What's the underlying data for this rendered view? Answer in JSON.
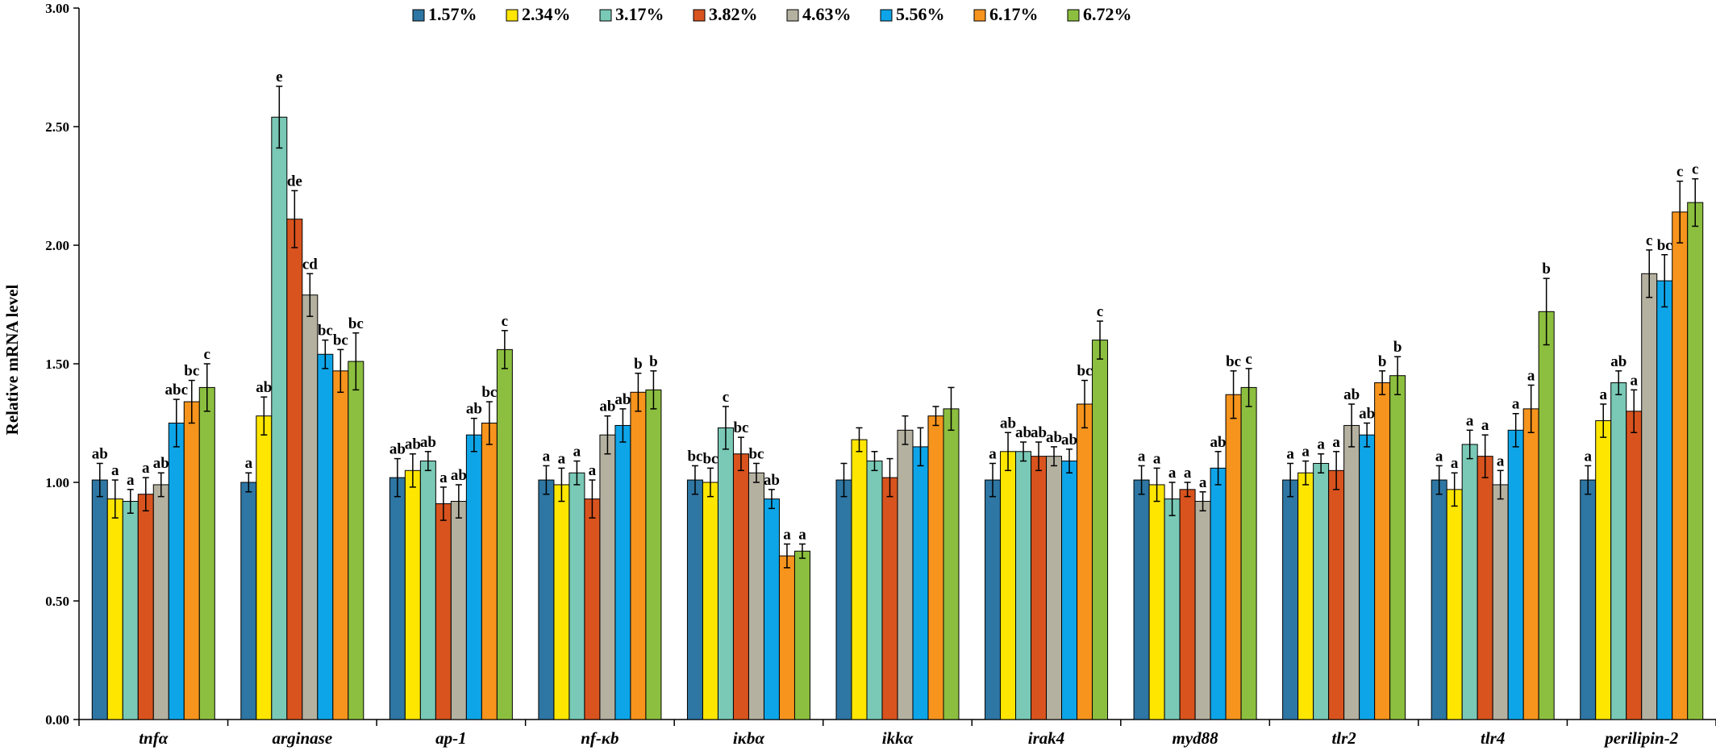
{
  "chart_data": {
    "type": "bar",
    "ylabel": "Relative mRNA level",
    "ylim": [
      0,
      3.0
    ],
    "yticks": [
      "0.00",
      "0.50",
      "1.00",
      "1.50",
      "2.00",
      "2.50",
      "3.00"
    ],
    "grid": false,
    "legend_position": "top",
    "categories": [
      "tnfα",
      "arginase",
      "ap-1",
      "nf-κb",
      "iκbα",
      "ikkα",
      "irak4",
      "myd88",
      "tlr2",
      "tlr4",
      "perilipin-2"
    ],
    "series": [
      {
        "name": "1.57%",
        "color": "#2e76a3",
        "values": [
          1.01,
          1.0,
          1.02,
          1.01,
          1.01,
          1.01,
          1.01,
          1.01,
          1.01,
          1.01,
          1.01
        ],
        "errors": [
          0.07,
          0.04,
          0.08,
          0.06,
          0.06,
          0.07,
          0.07,
          0.06,
          0.07,
          0.06,
          0.06
        ],
        "letters": [
          "ab",
          "a",
          "ab",
          "a",
          "bc",
          "",
          "a",
          "a",
          "a",
          "a",
          "a"
        ]
      },
      {
        "name": "2.34%",
        "color": "#ffe600",
        "values": [
          0.93,
          1.28,
          1.05,
          0.99,
          1.0,
          1.18,
          1.13,
          0.99,
          1.04,
          0.97,
          1.26
        ],
        "errors": [
          0.08,
          0.08,
          0.07,
          0.07,
          0.06,
          0.05,
          0.08,
          0.07,
          0.05,
          0.07,
          0.07
        ],
        "letters": [
          "a",
          "ab",
          "ab",
          "a",
          "bc",
          "",
          "ab",
          "a",
          "a",
          "a",
          "a"
        ]
      },
      {
        "name": "3.17%",
        "color": "#79c9b6",
        "values": [
          0.92,
          2.54,
          1.09,
          1.04,
          1.23,
          1.09,
          1.13,
          0.93,
          1.08,
          1.16,
          1.42
        ],
        "errors": [
          0.05,
          0.13,
          0.04,
          0.05,
          0.09,
          0.04,
          0.04,
          0.07,
          0.04,
          0.06,
          0.05
        ],
        "letters": [
          "a",
          "e",
          "ab",
          "a",
          "c",
          "",
          "ab",
          "a",
          "a",
          "a",
          "ab"
        ]
      },
      {
        "name": "3.82%",
        "color": "#d9531e",
        "values": [
          0.95,
          2.11,
          0.91,
          0.93,
          1.12,
          1.02,
          1.11,
          0.97,
          1.05,
          1.11,
          1.3
        ],
        "errors": [
          0.07,
          0.12,
          0.07,
          0.08,
          0.07,
          0.08,
          0.06,
          0.03,
          0.08,
          0.09,
          0.09
        ],
        "letters": [
          "a",
          "de",
          "a",
          "a",
          "bc",
          "",
          "ab",
          "a",
          "a",
          "a",
          "a"
        ]
      },
      {
        "name": "4.63%",
        "color": "#b5b1a0",
        "values": [
          0.99,
          1.79,
          0.92,
          1.2,
          1.04,
          1.22,
          1.11,
          0.92,
          1.24,
          0.99,
          1.88
        ],
        "errors": [
          0.05,
          0.09,
          0.07,
          0.08,
          0.04,
          0.06,
          0.04,
          0.04,
          0.09,
          0.06,
          0.1
        ],
        "letters": [
          "ab",
          "cd",
          "ab",
          "ab",
          "bc",
          "",
          "ab",
          "a",
          "ab",
          "a",
          "c"
        ]
      },
      {
        "name": "5.56%",
        "color": "#0ea5e8",
        "values": [
          1.25,
          1.54,
          1.2,
          1.24,
          0.93,
          1.15,
          1.09,
          1.06,
          1.2,
          1.22,
          1.85
        ],
        "errors": [
          0.1,
          0.06,
          0.07,
          0.07,
          0.04,
          0.08,
          0.05,
          0.07,
          0.05,
          0.07,
          0.11
        ],
        "letters": [
          "abc",
          "bc",
          "ab",
          "ab",
          "ab",
          "",
          "ab",
          "ab",
          "ab",
          "a",
          "bc"
        ]
      },
      {
        "name": "6.17%",
        "color": "#f7941d",
        "values": [
          1.34,
          1.47,
          1.25,
          1.38,
          0.69,
          1.28,
          1.33,
          1.37,
          1.42,
          1.31,
          2.14
        ],
        "errors": [
          0.09,
          0.09,
          0.09,
          0.08,
          0.05,
          0.04,
          0.1,
          0.1,
          0.05,
          0.1,
          0.13
        ],
        "letters": [
          "bc",
          "bc",
          "bc",
          "b",
          "a",
          "",
          "bc",
          "bc",
          "b",
          "a",
          "c"
        ]
      },
      {
        "name": "6.72%",
        "color": "#8cbf3f",
        "values": [
          1.4,
          1.51,
          1.56,
          1.39,
          0.71,
          1.31,
          1.6,
          1.4,
          1.45,
          1.72,
          2.18
        ],
        "errors": [
          0.1,
          0.12,
          0.08,
          0.08,
          0.03,
          0.09,
          0.08,
          0.08,
          0.08,
          0.14,
          0.1
        ],
        "letters": [
          "c",
          "bc",
          "c",
          "b",
          "a",
          "",
          "c",
          "c",
          "b",
          "b",
          "c"
        ]
      }
    ]
  }
}
